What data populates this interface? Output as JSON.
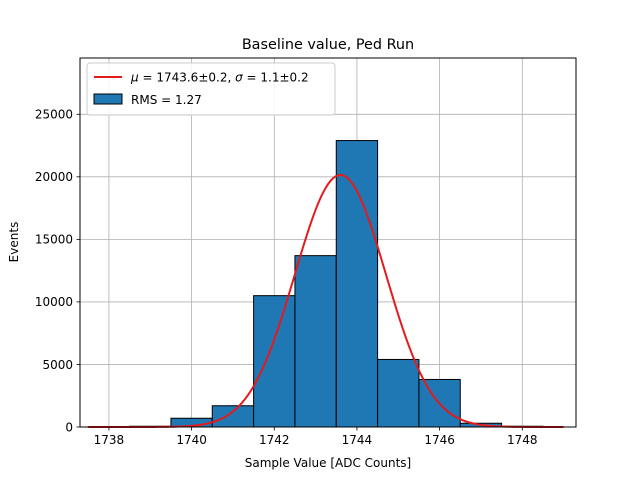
{
  "chart_data": {
    "type": "bar",
    "title": "Baseline value, Ped Run",
    "xlabel": "Sample Value [ADC Counts]",
    "ylabel": "Events",
    "xlim": [
      1737.3,
      1749.3
    ],
    "ylim": [
      0,
      29500
    ],
    "grid": true,
    "legend_position": "top-left",
    "x_ticks": [
      1738,
      1740,
      1742,
      1744,
      1746,
      1748
    ],
    "y_ticks": [
      0,
      5000,
      10000,
      15000,
      20000,
      25000
    ],
    "histogram": {
      "name": "RMS = 1.27",
      "color": "#1f77b4",
      "bins": [
        {
          "x0": 1737.5,
          "x1": 1738.5,
          "value": 30
        },
        {
          "x0": 1738.5,
          "x1": 1739.5,
          "value": 60
        },
        {
          "x0": 1739.5,
          "x1": 1740.5,
          "value": 700
        },
        {
          "x0": 1740.5,
          "x1": 1741.5,
          "value": 1700
        },
        {
          "x0": 1741.5,
          "x1": 1742.5,
          "value": 10500
        },
        {
          "x0": 1742.5,
          "x1": 1743.5,
          "value": 13700
        },
        {
          "x0": 1743.5,
          "x1": 1744.5,
          "value": 22900
        },
        {
          "x0": 1744.5,
          "x1": 1745.5,
          "value": 5400
        },
        {
          "x0": 1745.5,
          "x1": 1746.5,
          "value": 3800
        },
        {
          "x0": 1746.5,
          "x1": 1747.5,
          "value": 300
        },
        {
          "x0": 1747.5,
          "x1": 1748.5,
          "value": 60
        }
      ]
    },
    "fit": {
      "name": "$\\mu = $1743.6±0.2, $\\sigma = $1.1±0.2",
      "label_mu_symbol": "μ",
      "label_mu_text": " = 1743.6±0.2, ",
      "label_sigma_symbol": "σ",
      "label_sigma_text": " = 1.1±0.2",
      "color": "#e41a1c",
      "mu": 1743.6,
      "sigma": 1.1,
      "amplitude": 20150,
      "x_range": [
        1737.5,
        1749.0
      ]
    }
  }
}
